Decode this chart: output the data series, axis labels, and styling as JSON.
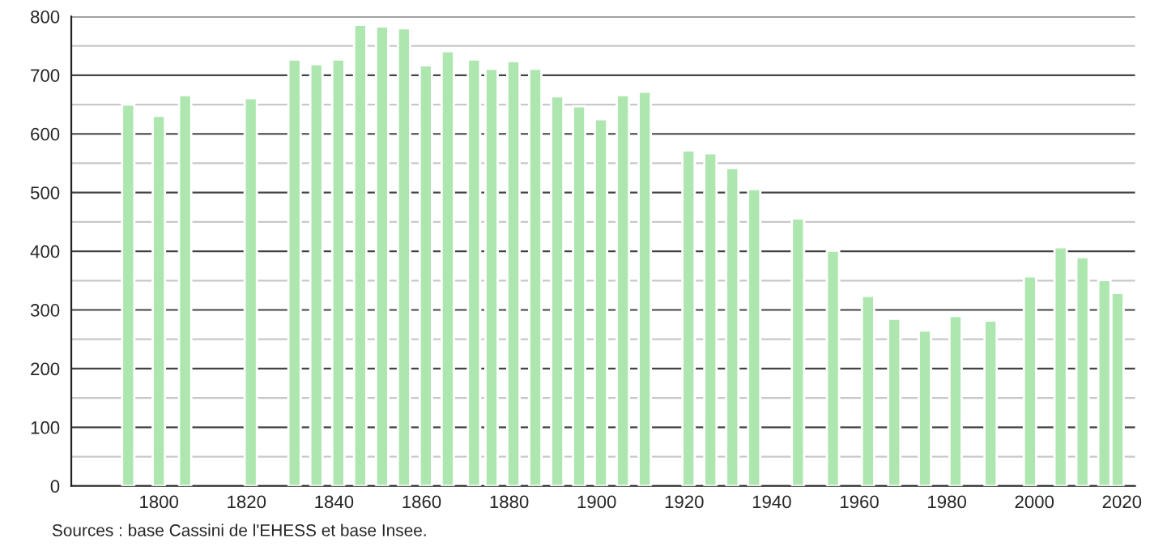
{
  "chart_data": {
    "type": "bar",
    "x": [
      1793,
      1800,
      1806,
      1821,
      1831,
      1836,
      1841,
      1846,
      1851,
      1856,
      1861,
      1866,
      1872,
      1876,
      1881,
      1886,
      1891,
      1896,
      1901,
      1906,
      1911,
      1921,
      1926,
      1931,
      1936,
      1946,
      1954,
      1962,
      1968,
      1975,
      1982,
      1990,
      1999,
      2006,
      2011,
      2016,
      2019
    ],
    "values": [
      650,
      631,
      666,
      661,
      727,
      719,
      727,
      786,
      783,
      780,
      717,
      741,
      727,
      711,
      724,
      711,
      664,
      647,
      625,
      666,
      672,
      572,
      567,
      542,
      506,
      456,
      401,
      324,
      285,
      265,
      290,
      282,
      357,
      407,
      390,
      351,
      329
    ],
    "color": "#aee6b0",
    "xlim": [
      1780,
      2023
    ],
    "xticks": [
      1800,
      1820,
      1840,
      1860,
      1880,
      1900,
      1920,
      1940,
      1960,
      1980,
      2000,
      2020
    ],
    "ylim": [
      0,
      800
    ],
    "yticks": [
      0,
      {
        "value": 50,
        "label": null
      },
      100,
      {
        "value": 150,
        "label": null
      },
      200,
      {
        "value": 250,
        "label": null
      },
      300,
      {
        "value": 350,
        "label": null
      },
      400,
      {
        "value": 450,
        "label": null
      },
      500,
      {
        "value": 550,
        "label": null
      },
      600,
      {
        "value": 650,
        "label": null
      },
      700,
      {
        "value": 750,
        "label": null
      },
      800
    ],
    "grid": "y",
    "annotations": [
      "Sources : base Cassini de l'EHESS et base Insee."
    ]
  }
}
